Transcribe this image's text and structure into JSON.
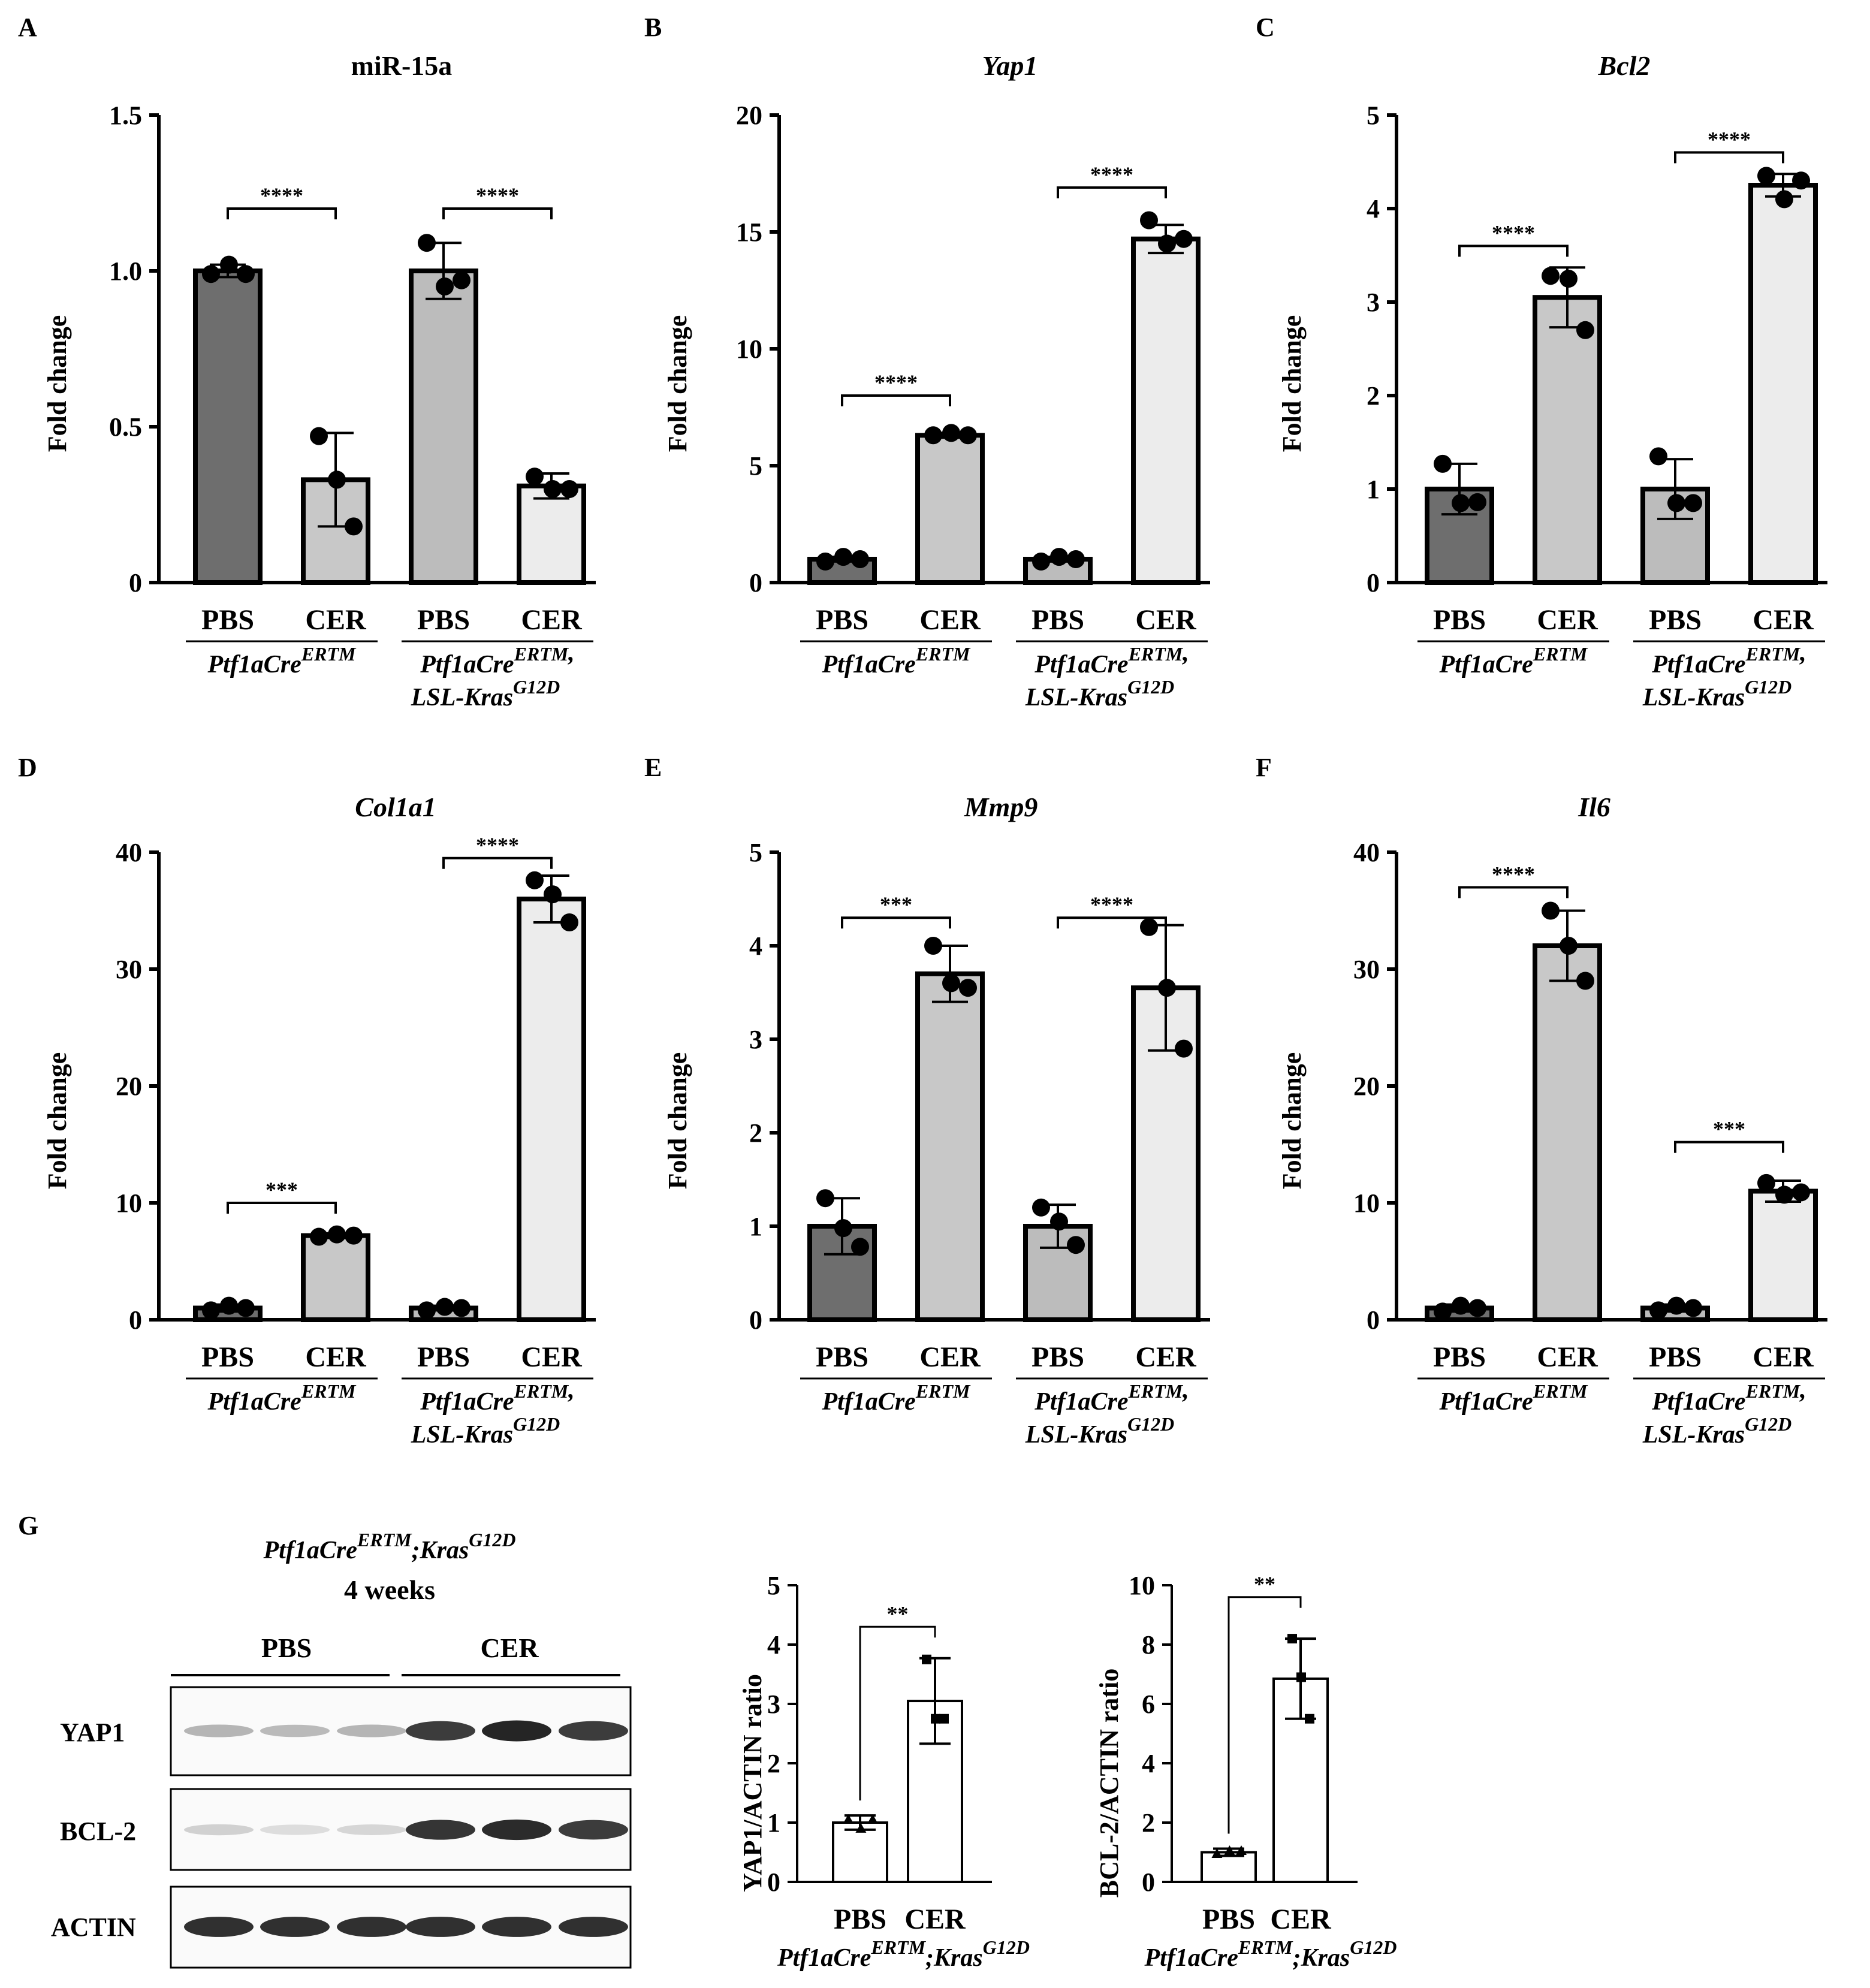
{
  "figure": {
    "ylabel": "Fold change",
    "group_labels": [
      "PBS",
      "CER",
      "PBS",
      "CER"
    ],
    "genotype_a": {
      "base": "Ptf1aCre",
      "sup": "ERTM"
    },
    "genotype_b_line1": {
      "base": "Ptf1aCre",
      "sup": "ERTM",
      "suffix": ","
    },
    "genotype_b_line2": {
      "base": "LSL-Kras",
      "sup": "G12D"
    },
    "colors": {
      "pbs_a": "#6e6e6e",
      "cer_a": "#c8c8c8",
      "pbs_b": "#bcbcbc",
      "cer_b": "#ececec",
      "open": "#ffffff"
    }
  },
  "chart_data": [
    {
      "type": "bar",
      "letter": "A",
      "title": "miR-15a",
      "italic_title": false,
      "ylabel": "Fold change",
      "categories": [
        "PBS",
        "CER",
        "PBS",
        "CER"
      ],
      "ylim": [
        0,
        1.5
      ],
      "yticks": [
        "0",
        "0.5",
        "1.0",
        "1.5"
      ],
      "values": [
        1.0,
        0.33,
        1.0,
        0.31
      ],
      "errors": [
        0.02,
        0.15,
        0.09,
        0.04
      ],
      "points": [
        [
          0.99,
          1.02,
          0.99
        ],
        [
          0.47,
          0.33,
          0.18
        ],
        [
          1.09,
          0.95,
          0.97
        ],
        [
          0.34,
          0.3,
          0.3
        ]
      ],
      "significance": [
        {
          "from": 0,
          "to": 1,
          "y": 1.2,
          "label": "****"
        },
        {
          "from": 2,
          "to": 3,
          "y": 1.2,
          "label": "****"
        }
      ]
    },
    {
      "type": "bar",
      "letter": "B",
      "title": "Yap1",
      "italic_title": true,
      "ylabel": "Fold change",
      "categories": [
        "PBS",
        "CER",
        "PBS",
        "CER"
      ],
      "ylim": [
        0,
        20
      ],
      "yticks": [
        "0",
        "5",
        "10",
        "15",
        "20"
      ],
      "values": [
        1.0,
        6.3,
        1.0,
        14.7
      ],
      "errors": [
        0.1,
        0.1,
        0.1,
        0.6
      ],
      "points": [
        [
          0.9,
          1.1,
          1.0
        ],
        [
          6.3,
          6.4,
          6.3
        ],
        [
          0.9,
          1.1,
          1.0
        ],
        [
          15.5,
          14.5,
          14.7
        ]
      ],
      "significance": [
        {
          "from": 0,
          "to": 1,
          "y": 8.0,
          "label": "****"
        },
        {
          "from": 2,
          "to": 3,
          "y": 16.9,
          "label": "****"
        }
      ]
    },
    {
      "type": "bar",
      "letter": "C",
      "title": "Bcl2",
      "italic_title": true,
      "ylabel": "Fold change",
      "categories": [
        "PBS",
        "CER",
        "PBS",
        "CER"
      ],
      "ylim": [
        0,
        5
      ],
      "yticks": [
        "0",
        "1",
        "2",
        "3",
        "4",
        "5"
      ],
      "values": [
        1.0,
        3.05,
        1.0,
        4.25
      ],
      "errors": [
        0.27,
        0.32,
        0.32,
        0.12
      ],
      "points": [
        [
          1.27,
          0.85,
          0.86
        ],
        [
          3.28,
          3.25,
          2.7
        ],
        [
          1.35,
          0.85,
          0.85
        ],
        [
          4.35,
          4.1,
          4.3
        ]
      ],
      "significance": [
        {
          "from": 0,
          "to": 1,
          "y": 3.6,
          "label": "****"
        },
        {
          "from": 2,
          "to": 3,
          "y": 4.6,
          "label": "****"
        }
      ]
    },
    {
      "type": "bar",
      "letter": "D",
      "title": "Col1a1",
      "italic_title": true,
      "ylabel": "Fold change",
      "categories": [
        "PBS",
        "CER",
        "PBS",
        "CER"
      ],
      "ylim": [
        0,
        40
      ],
      "yticks": [
        "0",
        "10",
        "20",
        "30",
        "40"
      ],
      "values": [
        1.0,
        7.2,
        1.0,
        36.0
      ],
      "errors": [
        0.3,
        0.2,
        0.2,
        2.0
      ],
      "points": [
        [
          0.8,
          1.2,
          1.0
        ],
        [
          7.1,
          7.3,
          7.2
        ],
        [
          0.8,
          1.1,
          1.0
        ],
        [
          37.6,
          36.4,
          34.0
        ]
      ],
      "significance": [
        {
          "from": 0,
          "to": 1,
          "y": 10.0,
          "label": "***"
        },
        {
          "from": 2,
          "to": 3,
          "y": 39.5,
          "label": "****"
        }
      ]
    },
    {
      "type": "bar",
      "letter": "E",
      "title": "Mmp9",
      "italic_title": true,
      "ylabel": "Fold change",
      "categories": [
        "PBS",
        "CER",
        "PBS",
        "CER"
      ],
      "ylim": [
        0,
        5
      ],
      "yticks": [
        "0",
        "1",
        "2",
        "3",
        "4",
        "5"
      ],
      "values": [
        1.0,
        3.7,
        1.0,
        3.55
      ],
      "errors": [
        0.3,
        0.3,
        0.23,
        0.67
      ],
      "points": [
        [
          1.3,
          0.98,
          0.78
        ],
        [
          4.0,
          3.6,
          3.55
        ],
        [
          1.2,
          1.05,
          0.8
        ],
        [
          4.2,
          3.55,
          2.9
        ]
      ],
      "significance": [
        {
          "from": 0,
          "to": 1,
          "y": 4.3,
          "label": "***"
        },
        {
          "from": 2,
          "to": 3,
          "y": 4.3,
          "label": "****"
        }
      ]
    },
    {
      "type": "bar",
      "letter": "F",
      "title": "Il6",
      "italic_title": true,
      "ylabel": "Fold change",
      "categories": [
        "PBS",
        "CER",
        "PBS",
        "CER"
      ],
      "ylim": [
        0,
        40
      ],
      "yticks": [
        "0",
        "10",
        "20",
        "30",
        "40"
      ],
      "values": [
        1.0,
        32.0,
        1.0,
        11.0
      ],
      "errors": [
        0.3,
        3.0,
        0.3,
        0.9
      ],
      "points": [
        [
          0.7,
          1.2,
          1.0
        ],
        [
          35.0,
          32.0,
          29.0
        ],
        [
          0.8,
          1.2,
          1.0
        ],
        [
          11.7,
          10.7,
          10.9
        ]
      ],
      "significance": [
        {
          "from": 0,
          "to": 1,
          "y": 37.0,
          "label": "****"
        },
        {
          "from": 2,
          "to": 3,
          "y": 15.2,
          "label": "***"
        }
      ]
    },
    {
      "type": "bar",
      "title": "",
      "ylabel": "YAP1/ACTIN ratio",
      "categories": [
        "PBS",
        "CER"
      ],
      "ylim": [
        0,
        5
      ],
      "yticks": [
        "0",
        "1",
        "2",
        "3",
        "4",
        "5"
      ],
      "values": [
        1.0,
        3.05
      ],
      "errors": [
        0.12,
        0.72
      ],
      "points": [
        [
          1.05,
          0.9,
          1.05
        ],
        [
          3.75,
          2.75,
          2.75
        ]
      ],
      "significance": [
        {
          "from": 0,
          "to": 1,
          "y": 4.3,
          "label": "**"
        }
      ]
    },
    {
      "type": "bar",
      "title": "",
      "ylabel": "BCL-2/ACTIN ratio",
      "categories": [
        "PBS",
        "CER"
      ],
      "ylim": [
        0,
        10
      ],
      "yticks": [
        "0",
        "2",
        "4",
        "6",
        "8",
        "10"
      ],
      "values": [
        1.0,
        6.85
      ],
      "errors": [
        0.12,
        1.35
      ],
      "points": [
        [
          0.95,
          1.05,
          1.05
        ],
        [
          8.2,
          6.9,
          5.5
        ]
      ],
      "significance": [
        {
          "from": 0,
          "to": 1,
          "y": 9.6,
          "label": "**"
        }
      ]
    }
  ],
  "panel_g": {
    "letter": "G",
    "title_line1": {
      "base1": "Ptf1aCre",
      "sup1": "ERTM",
      "mid": ";Kras",
      "sup2": "G12D"
    },
    "title_line2": "4 weeks",
    "group_pbs": "PBS",
    "group_cer": "CER",
    "blots": [
      {
        "label": "YAP1",
        "bands": [
          0.32,
          0.3,
          0.32,
          0.85,
          0.95,
          0.85
        ]
      },
      {
        "label": "BCL-2",
        "bands": [
          0.2,
          0.15,
          0.18,
          0.88,
          0.92,
          0.85
        ]
      },
      {
        "label": "ACTIN",
        "bands": [
          0.9,
          0.9,
          0.9,
          0.9,
          0.9,
          0.9
        ]
      }
    ],
    "quant_genotype": {
      "base1": "Ptf1aCre",
      "sup1": "ERTM",
      "mid": ";Kras",
      "sup2": "G12D"
    }
  }
}
